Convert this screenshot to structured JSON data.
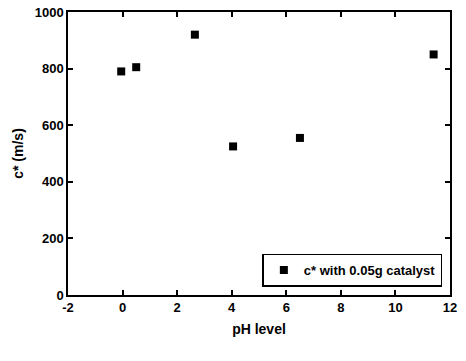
{
  "chart_data": {
    "type": "scatter",
    "x_label": "pH level",
    "y_label": "c* (m/s)",
    "x": [
      -0.05,
      0.5,
      2.65,
      4.05,
      6.5,
      11.4
    ],
    "series": [
      {
        "name": "c* with 0.05g catalyst",
        "color": "#000000",
        "marker": "square",
        "values": [
          790,
          805,
          920,
          525,
          555,
          850
        ]
      }
    ],
    "xlim": [
      -2,
      12
    ],
    "xticks": [
      -2,
      0,
      2,
      4,
      6,
      8,
      10,
      12
    ],
    "ylim": [
      0,
      1000
    ],
    "yticks": [
      0,
      200,
      400,
      600,
      800,
      1000
    ],
    "grid": false,
    "legend": "lower right"
  }
}
